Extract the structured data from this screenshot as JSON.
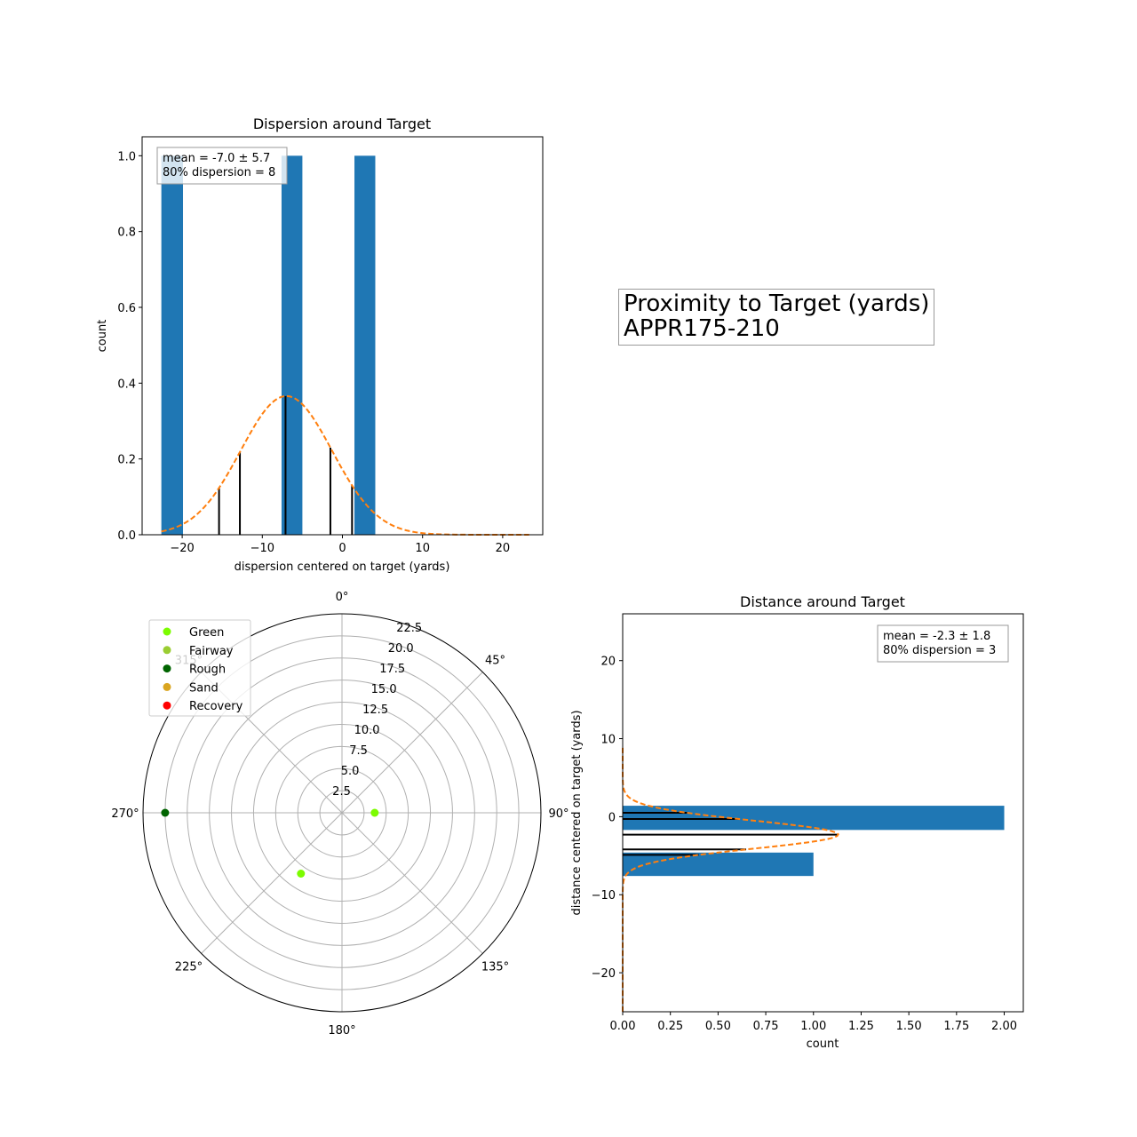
{
  "figure": {
    "title_line1": "Proximity to Target (yards)",
    "title_line2": "APPR175-210"
  },
  "colors": {
    "bar": "#1f77b4",
    "curve": "#ff7f0e",
    "marker_lines": "#000000",
    "green": "#7cfc00",
    "fairway": "#9acd32",
    "rough": "#006400",
    "sand": "#daa520",
    "recovery": "#ff0000"
  },
  "chart_data": [
    {
      "id": "dispersion",
      "type": "bar",
      "title": "Dispersion around Target",
      "xlabel": "dispersion centered on target (yards)",
      "ylabel": "count",
      "xlim": [
        -25,
        25
      ],
      "ylim": [
        0,
        1.05
      ],
      "xticks": [
        -20,
        -10,
        0,
        10,
        20
      ],
      "yticks": [
        0.0,
        0.2,
        0.4,
        0.6,
        0.8,
        1.0
      ],
      "bars": [
        {
          "x0": -22.6,
          "x1": -19.9,
          "value": 1
        },
        {
          "x0": -7.6,
          "x1": -5.0,
          "value": 1
        },
        {
          "x0": 1.5,
          "x1": 4.1,
          "value": 1
        }
      ],
      "curve": {
        "type": "normal",
        "mean": -7.0,
        "std": 5.7,
        "peak": 0.366,
        "x_range": [
          -22.6,
          23.3
        ],
        "style": "dashed"
      },
      "marker_lines_x": [
        -15.4,
        -12.8,
        -7.1,
        -1.5,
        1.2
      ],
      "annotation": [
        "mean = -7.0 ± 5.7",
        "80% dispersion = 8"
      ],
      "annotation_position": "top-left"
    },
    {
      "id": "polar",
      "type": "scatter",
      "projection": "polar",
      "theta_direction": "clockwise",
      "theta_zero": "top",
      "rmax": 22.5,
      "rticks": [
        "2.5",
        "5.0",
        "7.5",
        "10.0",
        "12.5",
        "15.0",
        "17.5",
        "20.0",
        "22.5"
      ],
      "theta_labels": [
        "0°",
        "45°",
        "90°",
        "135°",
        "180°",
        "225°",
        "270°",
        "315°"
      ],
      "legend": [
        {
          "label": "Green",
          "color": "#7cfc00"
        },
        {
          "label": "Fairway",
          "color": "#9acd32"
        },
        {
          "label": "Rough",
          "color": "#006400"
        },
        {
          "label": "Sand",
          "color": "#daa520"
        },
        {
          "label": "Recovery",
          "color": "#ff0000"
        }
      ],
      "legend_position": "top-left",
      "points": [
        {
          "theta_deg": 90,
          "r": 3.7,
          "color": "#7cfc00",
          "lie": "Green"
        },
        {
          "theta_deg": 214,
          "r": 8.3,
          "color": "#7cfc00",
          "lie": "Green"
        },
        {
          "theta_deg": 270,
          "r": 20.0,
          "color": "#006400",
          "lie": "Rough"
        }
      ]
    },
    {
      "id": "distance",
      "type": "bar",
      "orientation": "horizontal",
      "title": "Distance around Target",
      "xlabel": "count",
      "ylabel": "distance centered on target (yards)",
      "xlim": [
        0,
        2.1
      ],
      "ylim": [
        -25,
        26
      ],
      "xticks": [
        "0.00",
        "0.25",
        "0.50",
        "0.75",
        "1.00",
        "1.25",
        "1.50",
        "1.75",
        "2.00"
      ],
      "yticks": [
        -20,
        -10,
        0,
        10,
        20
      ],
      "bars": [
        {
          "y0": -1.7,
          "y1": 1.4,
          "value": 2
        },
        {
          "y0": -7.6,
          "y1": -4.6,
          "value": 1
        }
      ],
      "curve": {
        "type": "normal",
        "mean": -2.3,
        "std": 1.8,
        "peak": 1.13,
        "y_range": [
          -25,
          9
        ],
        "style": "dashed"
      },
      "marker_lines_y": [
        0.5,
        -0.3,
        -2.3,
        -4.2,
        -4.9
      ],
      "annotation": [
        "mean = -2.3 ± 1.8",
        "80% dispersion = 3"
      ],
      "annotation_position": "top-right"
    }
  ]
}
